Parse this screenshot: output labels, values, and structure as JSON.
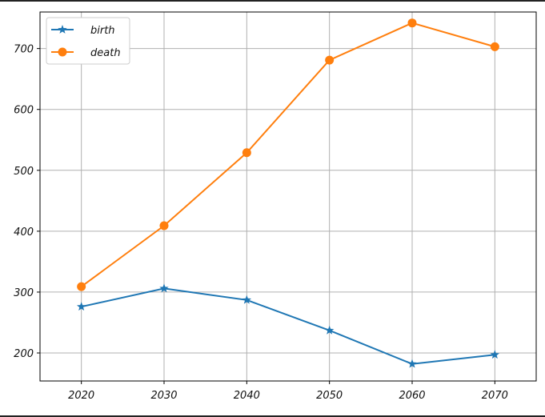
{
  "chart_data": {
    "type": "line",
    "title": "",
    "xlabel": "",
    "ylabel": "",
    "x": [
      2020,
      2030,
      2040,
      2050,
      2060,
      2070
    ],
    "xlim": [
      2015,
      2075
    ],
    "ylim": [
      154,
      760
    ],
    "xticks": [
      2020,
      2030,
      2040,
      2050,
      2060,
      2070
    ],
    "yticks": [
      200,
      300,
      400,
      500,
      600,
      700
    ],
    "grid": true,
    "legend_position": "top-left",
    "series": [
      {
        "name": "birth",
        "values": [
          276,
          306,
          287,
          237,
          182,
          197
        ],
        "color": "#1f77b4",
        "marker": "star"
      },
      {
        "name": "death",
        "values": [
          309,
          409,
          529,
          681,
          742,
          703
        ],
        "color": "#ff7f0e",
        "marker": "circle"
      }
    ]
  }
}
